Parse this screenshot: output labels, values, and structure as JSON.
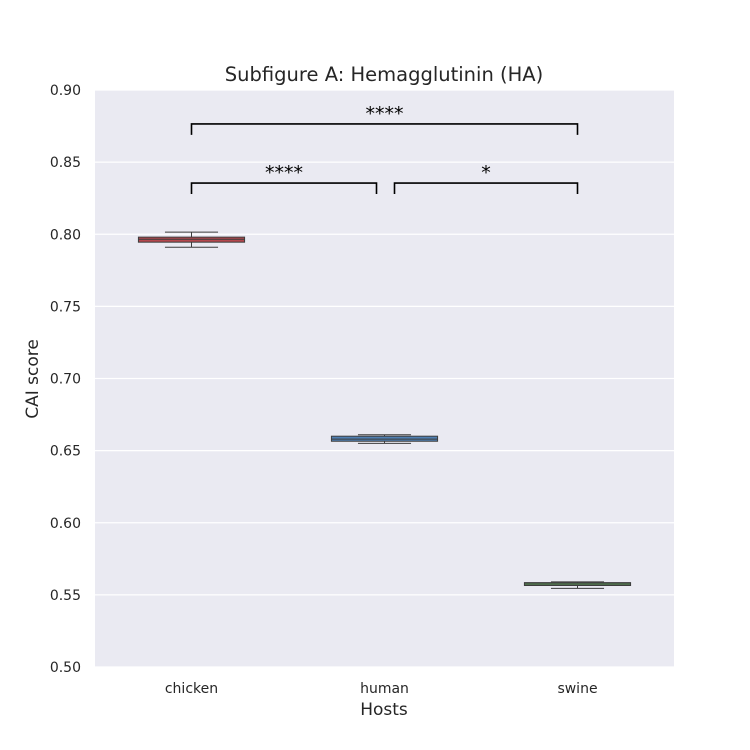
{
  "chart_data": {
    "type": "box",
    "title": "Subfigure A: Hemagglutinin (HA)",
    "xlabel": "Hosts",
    "ylabel": "CAI score",
    "ylim": [
      0.5,
      0.9
    ],
    "yticks": [
      0.5,
      0.55,
      0.6,
      0.65,
      0.7,
      0.75,
      0.8,
      0.85,
      0.9
    ],
    "ytick_labels": [
      "0.50",
      "0.55",
      "0.60",
      "0.65",
      "0.70",
      "0.75",
      "0.80",
      "0.85",
      "0.90"
    ],
    "categories": [
      "chicken",
      "human",
      "swine"
    ],
    "boxes": [
      {
        "category": "chicken",
        "whisker_low": 0.791,
        "q1": 0.7945,
        "median": 0.7965,
        "q3": 0.798,
        "whisker_high": 0.8015,
        "color": "#b4484e"
      },
      {
        "category": "human",
        "whisker_low": 0.655,
        "q1": 0.6565,
        "median": 0.658,
        "q3": 0.66,
        "whisker_high": 0.661,
        "color": "#4f7fb2"
      },
      {
        "category": "swine",
        "whisker_low": 0.5545,
        "q1": 0.5565,
        "median": 0.5575,
        "q3": 0.5585,
        "whisker_high": 0.559,
        "color": "#5e9c5b"
      }
    ],
    "annotations": [
      {
        "from": "chicken",
        "to": "human",
        "level": 0.8355,
        "label": "****"
      },
      {
        "from": "human",
        "to": "swine",
        "level": 0.8355,
        "label": "*"
      },
      {
        "from": "chicken",
        "to": "swine",
        "level": 0.8765,
        "label": "****"
      }
    ],
    "grid": true,
    "background": "#eaeaf2"
  }
}
